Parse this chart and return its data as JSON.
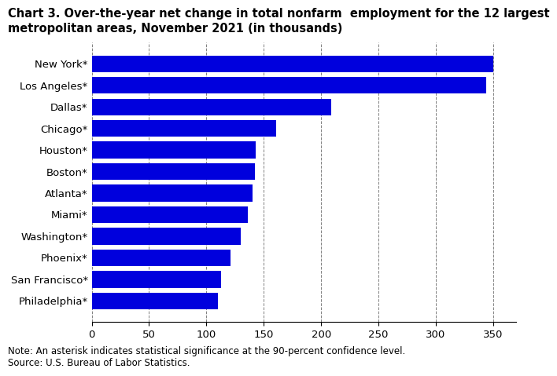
{
  "title_line1": "Chart 3. Over-the-year net change in total nonfarm  employment for the 12 largest",
  "title_line2": "metropolitan areas, November 2021 (in thousands)",
  "categories": [
    "Philadelphia*",
    "San Francisco*",
    "Phoenix*",
    "Washington*",
    "Miami*",
    "Atlanta*",
    "Boston*",
    "Houston*",
    "Chicago*",
    "Dallas*",
    "Los Angeles*",
    "New York*"
  ],
  "values": [
    110,
    113,
    121,
    130,
    136,
    140,
    142,
    143,
    161,
    209,
    344,
    350
  ],
  "bar_color": "#0000dd",
  "xlim": [
    0,
    370
  ],
  "xticks": [
    0,
    50,
    100,
    150,
    200,
    250,
    300,
    350
  ],
  "note": "Note: An asterisk indicates statistical significance at the 90-percent confidence level.",
  "source": "Source: U.S. Bureau of Labor Statistics.",
  "title_fontsize": 10.5,
  "tick_fontsize": 9.5,
  "note_fontsize": 8.5,
  "bar_height": 0.78
}
